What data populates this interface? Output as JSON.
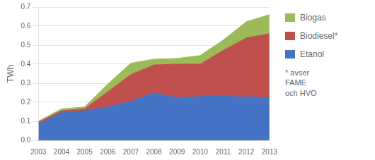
{
  "chart_data": {
    "type": "area",
    "x": [
      2003,
      2004,
      2005,
      2006,
      2007,
      2008,
      2009,
      2010,
      2011,
      2012,
      2013
    ],
    "series": [
      {
        "name": "Etanol",
        "color": "#4472C4",
        "values": [
          0.085,
          0.145,
          0.155,
          0.175,
          0.205,
          0.248,
          0.225,
          0.23,
          0.232,
          0.228,
          0.225
        ]
      },
      {
        "name": "Biodiesel*",
        "color": "#C0504D",
        "values": [
          0.01,
          0.01,
          0.01,
          0.08,
          0.14,
          0.148,
          0.175,
          0.17,
          0.24,
          0.31,
          0.335
        ]
      },
      {
        "name": "Biogas",
        "color": "#9BBB59",
        "values": [
          0.005,
          0.01,
          0.01,
          0.04,
          0.06,
          0.03,
          0.03,
          0.045,
          0.055,
          0.085,
          0.1
        ]
      }
    ],
    "ylabel": "TWh",
    "xlim": [
      2003,
      2013
    ],
    "xticks": [
      2003,
      2004,
      2005,
      2006,
      2007,
      2008,
      2009,
      2010,
      2011,
      2012,
      2013
    ],
    "ylim": [
      0,
      0.7
    ],
    "yticks": [
      {
        "value": 0,
        "label": "0.0"
      },
      0.1,
      0.2,
      0.3,
      0.4,
      0.5,
      0.6,
      0.7
    ],
    "grid": "y",
    "stacked": true,
    "legend": "right",
    "annotation": "* avser\nFAME\noch HVO"
  }
}
